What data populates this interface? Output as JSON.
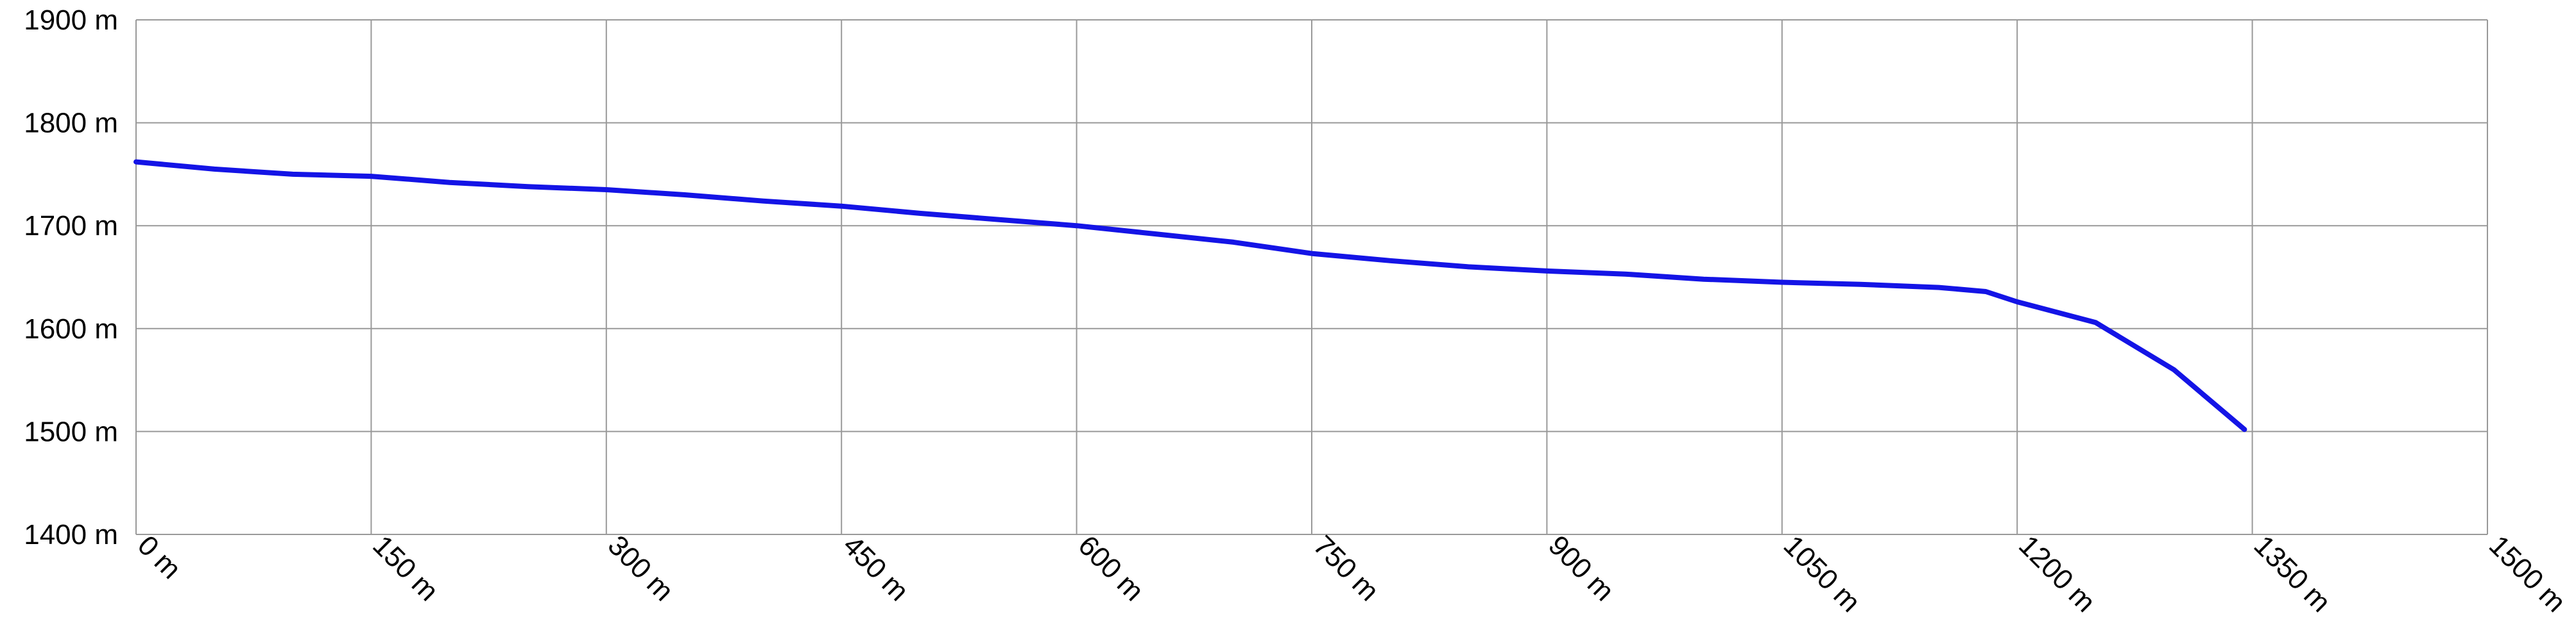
{
  "chart_data": {
    "type": "line",
    "x": [
      0,
      50,
      100,
      150,
      200,
      250,
      300,
      350,
      400,
      450,
      500,
      550,
      600,
      650,
      700,
      750,
      800,
      850,
      900,
      950,
      1000,
      1050,
      1100,
      1150,
      1180,
      1200,
      1250,
      1300,
      1345
    ],
    "values": [
      1762,
      1755,
      1750,
      1748,
      1742,
      1738,
      1735,
      1730,
      1724,
      1719,
      1712,
      1706,
      1700,
      1692,
      1684,
      1673,
      1666,
      1660,
      1656,
      1653,
      1648,
      1645,
      1643,
      1640,
      1636,
      1626,
      1606,
      1560,
      1502
    ],
    "color": "#1414e6",
    "xlim": [
      0,
      1500
    ],
    "ylim": [
      1400,
      1900
    ],
    "xticks": [
      {
        "value": 0,
        "label": "0 m"
      },
      {
        "value": 150,
        "label": "150 m"
      },
      {
        "value": 300,
        "label": "300 m"
      },
      {
        "value": 450,
        "label": "450 m"
      },
      {
        "value": 600,
        "label": "600 m"
      },
      {
        "value": 750,
        "label": "750 m"
      },
      {
        "value": 900,
        "label": "900 m"
      },
      {
        "value": 1050,
        "label": "1050 m"
      },
      {
        "value": 1200,
        "label": "1200 m"
      },
      {
        "value": 1350,
        "label": "1350 m"
      },
      {
        "value": 1500,
        "label": "1500 m"
      }
    ],
    "yticks": [
      {
        "value": 1400,
        "label": "1400 m"
      },
      {
        "value": 1500,
        "label": "1500 m"
      },
      {
        "value": 1600,
        "label": "1600 m"
      },
      {
        "value": 1700,
        "label": "1700 m"
      },
      {
        "value": 1800,
        "label": "1800 m"
      },
      {
        "value": 1900,
        "label": "1900 m"
      }
    ],
    "grid": true
  }
}
